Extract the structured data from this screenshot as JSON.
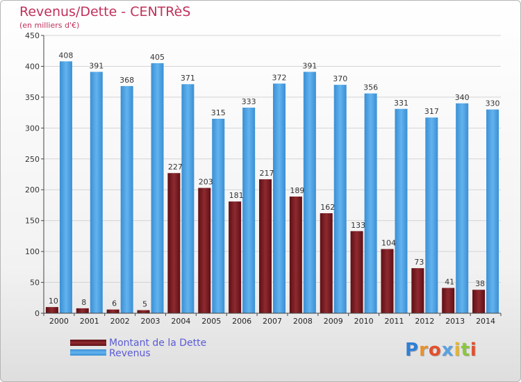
{
  "chart_data": {
    "type": "bar",
    "title": "Revenus/Dette - CENTRèS",
    "subtitle": "(en milliers d'€)",
    "categories": [
      "2000",
      "2001",
      "2002",
      "2003",
      "2004",
      "2005",
      "2006",
      "2007",
      "2008",
      "2009",
      "2010",
      "2011",
      "2012",
      "2013",
      "2014"
    ],
    "series": [
      {
        "name": "Montant de la Dette",
        "color": "#7a1a1f",
        "values": [
          10,
          8,
          6,
          5,
          227,
          203,
          181,
          217,
          189,
          162,
          133,
          104,
          73,
          41,
          38
        ]
      },
      {
        "name": "Revenus",
        "color": "#4a9fe0",
        "values": [
          408,
          391,
          368,
          405,
          371,
          315,
          333,
          372,
          391,
          370,
          356,
          331,
          317,
          340,
          330
        ]
      }
    ],
    "ylim": [
      0,
      450
    ],
    "yticks": [
      0,
      50,
      100,
      150,
      200,
      250,
      300,
      350,
      400,
      450
    ],
    "grid": true,
    "legend_position": "bottom-left"
  },
  "logo": {
    "text": "Proxiti",
    "letters": [
      "P",
      "r",
      "o",
      "x",
      "i",
      "t",
      "i"
    ],
    "colors": [
      "#2f7fd6",
      "#e8912b",
      "#e34f2c",
      "#5aa1e0",
      "#e8b52b",
      "#8cc63f",
      "#e34f2c"
    ]
  }
}
